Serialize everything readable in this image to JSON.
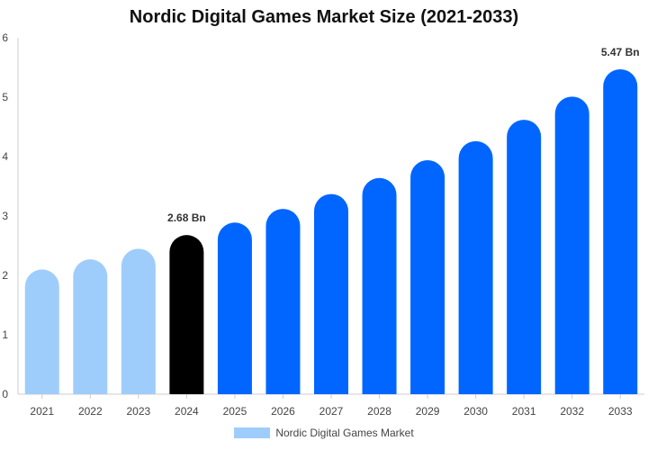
{
  "chart_data": {
    "type": "bar",
    "title": "Nordic Digital Games Market Size (2021-2033)",
    "xlabel": "",
    "ylabel": "",
    "categories": [
      "2021",
      "2022",
      "2023",
      "2024",
      "2025",
      "2026",
      "2027",
      "2028",
      "2029",
      "2030",
      "2031",
      "2032",
      "2033"
    ],
    "series": [
      {
        "name": "Nordic Digital Games Market",
        "values": [
          2.1,
          2.27,
          2.45,
          2.68,
          2.89,
          3.12,
          3.37,
          3.64,
          3.94,
          4.26,
          4.62,
          5.01,
          5.47
        ]
      }
    ],
    "data_labels": [
      {
        "category": "2024",
        "text": "2.68 Bn"
      },
      {
        "category": "2033",
        "text": "5.47 Bn"
      }
    ],
    "ylim": [
      0,
      6
    ],
    "yticks": [
      0,
      1,
      2,
      3,
      4,
      5,
      6
    ],
    "grid": false,
    "legend_position": "bottom",
    "colors": {
      "historical": "#9fcdfb",
      "current": "#000000",
      "forecast": "#0066ff"
    },
    "bar_color_groups": [
      "historical",
      "historical",
      "historical",
      "current",
      "forecast",
      "forecast",
      "forecast",
      "forecast",
      "forecast",
      "forecast",
      "forecast",
      "forecast",
      "forecast"
    ]
  }
}
